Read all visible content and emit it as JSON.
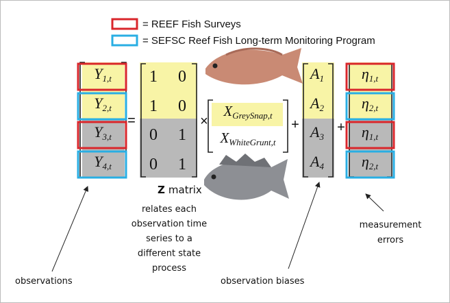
{
  "legend": [
    {
      "label": "= REEF Fish Surveys",
      "color": "#d9262b"
    },
    {
      "label": "= SEFSC Reef Fish Long-term Monitoring Program",
      "color": "#29aee3"
    }
  ],
  "equation": {
    "observations": [
      {
        "symbol": "Y",
        "subscript": "1,t"
      },
      {
        "symbol": "Y",
        "subscript": "2,t"
      },
      {
        "symbol": "Y",
        "subscript": "3,t"
      },
      {
        "symbol": "Y",
        "subscript": "4,t"
      }
    ],
    "equals": "=",
    "z_matrix": [
      [
        1,
        0
      ],
      [
        1,
        0
      ],
      [
        0,
        1
      ],
      [
        0,
        1
      ]
    ],
    "times": "×",
    "states": [
      {
        "symbol": "X",
        "subscript": "GreySnap,t"
      },
      {
        "symbol": "X",
        "subscript": "WhiteGrunt,t"
      }
    ],
    "plus_1": "+",
    "biases": [
      {
        "symbol": "A",
        "subscript": "1"
      },
      {
        "symbol": "A",
        "subscript": "2"
      },
      {
        "symbol": "A",
        "subscript": "3"
      },
      {
        "symbol": "A",
        "subscript": "4"
      }
    ],
    "plus_2": "+",
    "errors": [
      {
        "symbol": "η",
        "subscript": "1,t"
      },
      {
        "symbol": "η",
        "subscript": "2,t"
      },
      {
        "symbol": "η",
        "subscript": "1,t"
      },
      {
        "symbol": "η",
        "subscript": "2,t"
      }
    ]
  },
  "annotations": {
    "z_matrix_title": {
      "bold": "Z",
      "rest": "matrix"
    },
    "z_matrix_description": [
      "relates each",
      "observation time",
      "series to a",
      "different state",
      "process"
    ],
    "observations": "observations",
    "observation_biases": "observation biases",
    "measurement_errors": [
      "measurement",
      "errors"
    ]
  }
}
